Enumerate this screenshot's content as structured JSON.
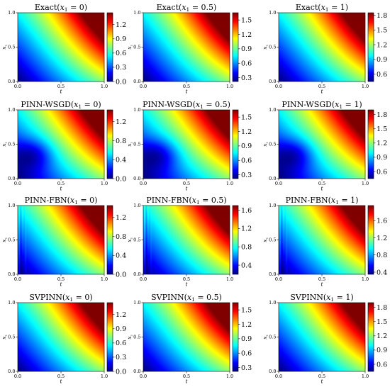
{
  "chart_data": [
    {
      "type": "heatmap",
      "title": "Exact(x₁ = 0)",
      "title_main": "Exact",
      "param": "0",
      "xlabel": "t",
      "ylabel": "x₂",
      "xticks": [
        "0.0",
        "0.5",
        "1.0"
      ],
      "yticks": [
        "0.0",
        "0.5",
        "1.0"
      ],
      "colormap": "jet",
      "colorbar": {
        "range": [
          0.0,
          1.45
        ],
        "ticks": [
          "0.0",
          "0.3",
          "0.6",
          "0.9",
          "1.2"
        ]
      },
      "artifact": "none"
    },
    {
      "type": "heatmap",
      "title": "Exact(x₁ = 0.5)",
      "title_main": "Exact",
      "param": "0.5",
      "xlabel": "t",
      "ylabel": "x₂",
      "xticks": [
        "0.0",
        "0.5",
        "1.0"
      ],
      "yticks": [
        "0.0",
        "0.5",
        "1.0"
      ],
      "colormap": "jet",
      "colorbar": {
        "range": [
          0.22,
          1.65
        ],
        "ticks": [
          "0.3",
          "0.6",
          "0.9",
          "1.2",
          "1.5"
        ]
      },
      "artifact": "none"
    },
    {
      "type": "heatmap",
      "title": "Exact(x₁ = 1)",
      "title_main": "Exact",
      "param": "1",
      "xlabel": "t",
      "ylabel": "x₂",
      "xticks": [
        "0.0",
        "0.5",
        "1.0"
      ],
      "yticks": [
        "0.0",
        "0.5",
        "1.0"
      ],
      "colormap": "jet",
      "colorbar": {
        "range": [
          0.45,
          1.85
        ],
        "ticks": [
          "0.6",
          "0.9",
          "1.2",
          "1.5",
          "1.8"
        ]
      },
      "artifact": "none"
    },
    {
      "type": "heatmap",
      "title": "PINN-WSGD(x₁ = 0)",
      "title_main": "PINN-WSGD",
      "param": "0",
      "xlabel": "t",
      "ylabel": "x₂",
      "xticks": [
        "0.0",
        "0.5",
        "1.0"
      ],
      "yticks": [
        "0.0",
        "0.5",
        "1.0"
      ],
      "colormap": "jet",
      "colorbar": {
        "range": [
          0.0,
          1.45
        ],
        "ticks": [
          "0.0",
          "0.4",
          "0.8",
          "1.2"
        ]
      },
      "artifact": "dark"
    },
    {
      "type": "heatmap",
      "title": "PINN-WSGD(x₁ = 0.5)",
      "title_main": "PINN-WSGD",
      "param": "0.5",
      "xlabel": "t",
      "ylabel": "x₂",
      "xticks": [
        "0.0",
        "0.5",
        "1.0"
      ],
      "yticks": [
        "0.0",
        "0.5",
        "1.0"
      ],
      "colormap": "jet",
      "colorbar": {
        "range": [
          0.22,
          1.65
        ],
        "ticks": [
          "0.3",
          "0.6",
          "0.9",
          "1.2",
          "1.5"
        ]
      },
      "artifact": "dark"
    },
    {
      "type": "heatmap",
      "title": "PINN-WSGD(x₁ = 1)",
      "title_main": "PINN-WSGD",
      "param": "1",
      "xlabel": "t",
      "ylabel": "x₂",
      "xticks": [
        "0.0",
        "0.5",
        "1.0"
      ],
      "yticks": [
        "0.0",
        "0.5",
        "1.0"
      ],
      "colormap": "jet",
      "colorbar": {
        "range": [
          0.45,
          1.9
        ],
        "ticks": [
          "0.6",
          "0.9",
          "1.2",
          "1.5",
          "1.8"
        ]
      },
      "artifact": "dark"
    },
    {
      "type": "heatmap",
      "title": "PINN-FBN(x₁ = 0)",
      "title_main": "PINN-FBN",
      "param": "0",
      "xlabel": "t",
      "ylabel": "x₂",
      "xticks": [
        "0.0",
        "0.5",
        "1.0"
      ],
      "yticks": [
        "0.0",
        "0.5",
        "1.0"
      ],
      "colormap": "jet",
      "colorbar": {
        "range": [
          0.0,
          1.45
        ],
        "ticks": [
          "0.0",
          "0.4",
          "0.8",
          "1.2"
        ]
      },
      "artifact": "stripes"
    },
    {
      "type": "heatmap",
      "title": "PINN-FBN(x₁ = 0.5)",
      "title_main": "PINN-FBN",
      "param": "0.5",
      "xlabel": "t",
      "ylabel": "x₂",
      "xticks": [
        "0.0",
        "0.5",
        "1.0"
      ],
      "yticks": [
        "0.0",
        "0.5",
        "1.0"
      ],
      "colormap": "jet",
      "colorbar": {
        "range": [
          0.2,
          1.7
        ],
        "ticks": [
          "0.4",
          "0.8",
          "1.2",
          "1.6"
        ]
      },
      "artifact": "stripes"
    },
    {
      "type": "heatmap",
      "title": "PINN-FBN(x₁ = 1)",
      "title_main": "PINN-FBN",
      "param": "1",
      "xlabel": "t",
      "ylabel": "x₂",
      "xticks": [
        "0.0",
        "0.5",
        "1.0"
      ],
      "yticks": [
        "0.0",
        "0.5",
        "1.0"
      ],
      "colormap": "jet",
      "colorbar": {
        "range": [
          0.35,
          1.95
        ],
        "ticks": [
          "0.4",
          "0.8",
          "1.2",
          "1.6"
        ]
      },
      "artifact": "stripes"
    },
    {
      "type": "heatmap",
      "title": "SVPINN(x₁ = 0)",
      "title_main": "SVPINN",
      "param": "0",
      "xlabel": "t",
      "ylabel": "x₂",
      "xticks": [
        "0.0",
        "0.5",
        "1.0"
      ],
      "yticks": [
        "0.0",
        "0.5",
        "1.0"
      ],
      "colormap": "jet",
      "colorbar": {
        "range": [
          0.0,
          1.45
        ],
        "ticks": [
          "0.0",
          "0.3",
          "0.6",
          "0.9",
          "1.2"
        ]
      },
      "artifact": "none"
    },
    {
      "type": "heatmap",
      "title": "SVPINN(x₁ = 0.5)",
      "title_main": "SVPINN",
      "param": "0.5",
      "xlabel": "t",
      "ylabel": "x₂",
      "xticks": [
        "0.0",
        "0.5",
        "1.0"
      ],
      "yticks": [
        "0.0",
        "0.5",
        "1.0"
      ],
      "colormap": "jet",
      "colorbar": {
        "range": [
          0.22,
          1.65
        ],
        "ticks": [
          "0.3",
          "0.6",
          "0.9",
          "1.2",
          "1.5"
        ]
      },
      "artifact": "none"
    },
    {
      "type": "heatmap",
      "title": "SVPINN(x₁ = 1)",
      "title_main": "SVPINN",
      "param": "1",
      "xlabel": "t",
      "ylabel": "x₂",
      "xticks": [
        "0.0",
        "0.5",
        "1.0"
      ],
      "yticks": [
        "0.0",
        "0.5",
        "1.0"
      ],
      "colormap": "jet",
      "colorbar": {
        "range": [
          0.45,
          1.9
        ],
        "ticks": [
          "0.6",
          "0.9",
          "1.2",
          "1.5",
          "1.8"
        ]
      },
      "artifact": "none"
    }
  ]
}
